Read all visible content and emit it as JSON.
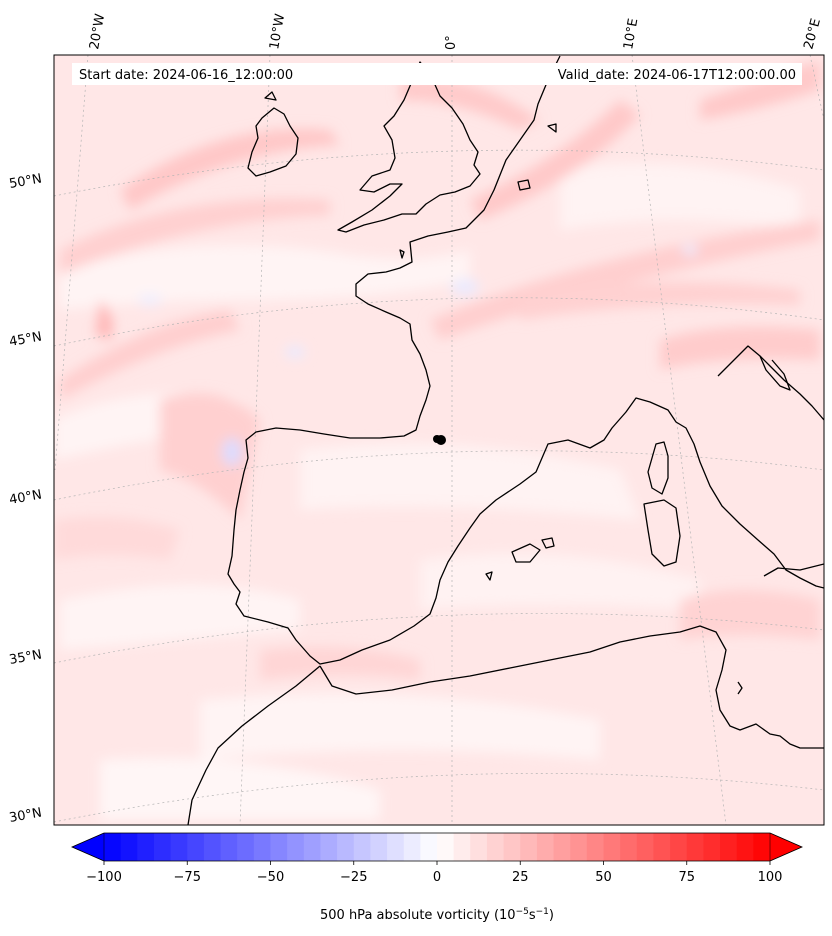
{
  "map": {
    "start_date_label": "Start date: 2024-06-16_12:00:00",
    "valid_date_label": "Valid_date: 2024-06-17T12:00:00.00",
    "longitude_labels": [
      "20°W",
      "10°W",
      "0°",
      "10°E",
      "20°E"
    ],
    "latitude_labels": [
      "50°N",
      "45°N",
      "40°N",
      "35°N",
      "30°N"
    ],
    "coastline_color": "#000000",
    "grid_color": "#aaaaaa",
    "marker": {
      "lat": 42.1,
      "lon": -0.7,
      "color": "#000000"
    }
  },
  "colorbar": {
    "label_prefix": "500 hPa absolute vorticity (10",
    "label_exp1": "−5",
    "label_mid": "s",
    "label_exp2": "−1",
    "label_suffix": ")",
    "ticks": [
      "−100",
      "−75",
      "−50",
      "−25",
      "0",
      "25",
      "50",
      "75",
      "100"
    ],
    "min": -100,
    "max": 100,
    "colormap": "bwr",
    "extend": "both"
  }
}
